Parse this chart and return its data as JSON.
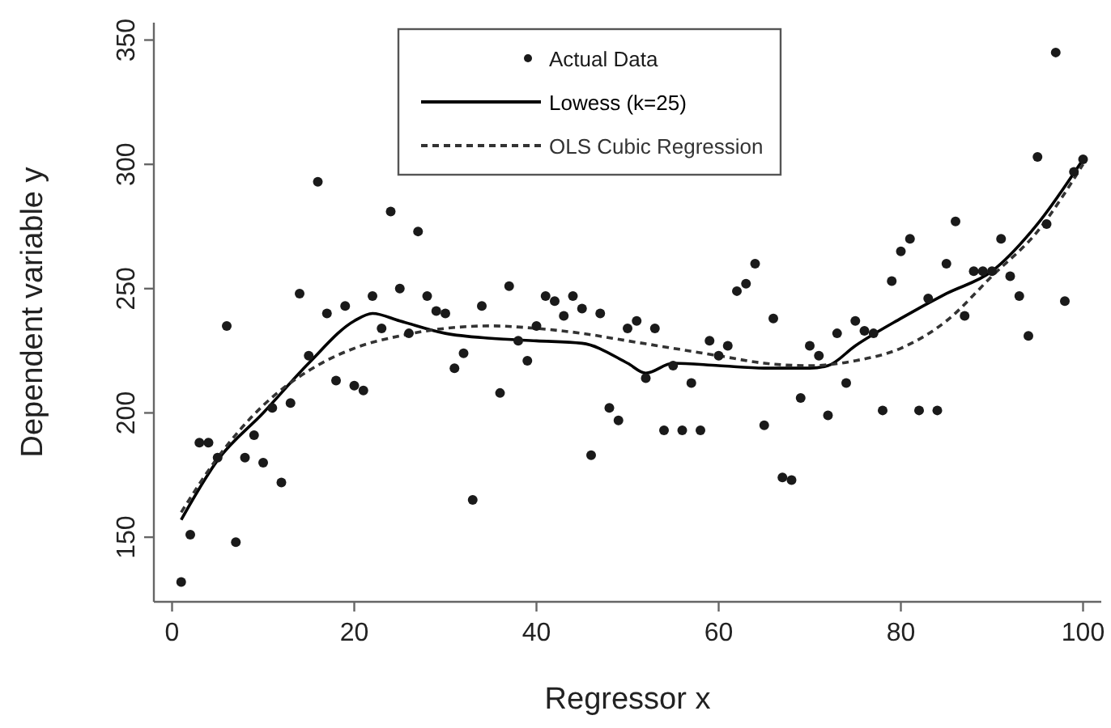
{
  "chart_data": {
    "type": "scatter",
    "xlabel": "Regressor x",
    "ylabel": "Dependent variable y",
    "xlim": [
      -2,
      102
    ],
    "ylim": [
      124,
      357
    ],
    "xticks": [
      0,
      20,
      40,
      60,
      80,
      100
    ],
    "yticks": [
      150,
      200,
      250,
      300,
      350
    ],
    "grid": false,
    "legend": "top",
    "series": [
      {
        "name": "Actual Data",
        "type": "scatter",
        "color": "#1a1a1a",
        "marker": "circle",
        "x": [
          1,
          2,
          3,
          4,
          5,
          6,
          7,
          8,
          9,
          10,
          11,
          12,
          13,
          14,
          15,
          16,
          17,
          18,
          19,
          20,
          21,
          22,
          23,
          24,
          25,
          26,
          27,
          28,
          29,
          30,
          31,
          32,
          33,
          34,
          36,
          37,
          38,
          39,
          40,
          41,
          42,
          43,
          44,
          45,
          46,
          47,
          48,
          49,
          50,
          51,
          52,
          53,
          54,
          55,
          56,
          57,
          58,
          59,
          60,
          61,
          62,
          63,
          64,
          65,
          66,
          67,
          68,
          69,
          70,
          71,
          72,
          73,
          74,
          75,
          76,
          77,
          78,
          79,
          80,
          81,
          82,
          83,
          84,
          85,
          86,
          87,
          88,
          89,
          90,
          91,
          92,
          93,
          94,
          95,
          96,
          97,
          98,
          99,
          100
        ],
        "values": [
          132,
          151,
          188,
          188,
          182,
          235,
          148,
          182,
          191,
          180,
          202,
          172,
          204,
          248,
          223,
          293,
          240,
          213,
          243,
          211,
          209,
          247,
          234,
          281,
          250,
          232,
          273,
          247,
          241,
          240,
          218,
          224,
          165,
          243,
          208,
          251,
          229,
          221,
          235,
          247,
          245,
          239,
          247,
          242,
          183,
          240,
          202,
          197,
          234,
          237,
          214,
          234,
          193,
          219,
          193,
          212,
          193,
          229,
          223,
          227,
          249,
          252,
          260,
          195,
          238,
          174,
          173,
          206,
          227,
          223,
          199,
          232,
          212,
          237,
          233,
          232,
          201,
          253,
          265,
          270,
          201,
          246,
          201,
          260,
          277,
          239,
          257,
          257,
          257,
          270,
          255,
          247,
          231,
          303,
          276,
          345,
          245,
          297,
          302
        ]
      },
      {
        "name": "Lowess (k=25)",
        "type": "line",
        "color": "#000000",
        "line_style": "solid",
        "marker": "none",
        "x": [
          1,
          5,
          10,
          15,
          20,
          22,
          25,
          30,
          35,
          40,
          45,
          50,
          52,
          55,
          60,
          65,
          70,
          72,
          75,
          80,
          85,
          90,
          95,
          100
        ],
        "values": [
          157,
          181,
          200,
          220,
          237,
          240,
          237,
          232,
          230,
          229,
          228,
          220,
          216,
          220,
          219,
          218,
          218,
          219,
          227,
          238,
          248,
          257,
          276,
          302
        ]
      },
      {
        "name": "OLS Cubic Regression",
        "type": "line",
        "color": "#333333",
        "line_style": "dashed",
        "marker": "none",
        "x": [
          1,
          5,
          10,
          15,
          20,
          25,
          30,
          35,
          40,
          45,
          50,
          55,
          60,
          65,
          70,
          75,
          80,
          85,
          90,
          95,
          100
        ],
        "values": [
          160,
          182,
          203,
          217,
          226,
          231,
          234,
          235,
          234,
          232,
          229,
          226,
          223,
          220,
          219,
          221,
          226,
          237,
          255,
          273,
          300
        ]
      }
    ]
  }
}
